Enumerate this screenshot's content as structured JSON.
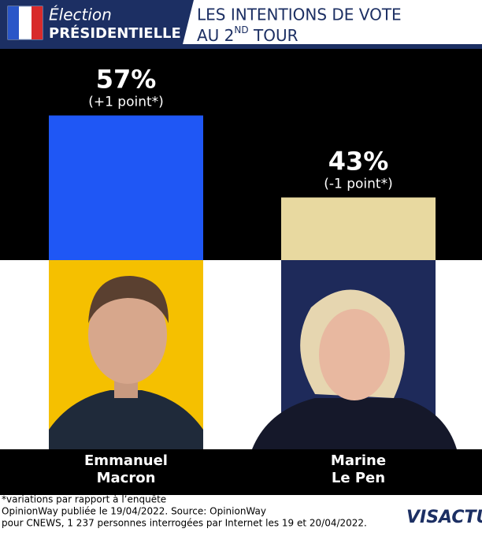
{
  "header": {
    "badge_top": "Élection",
    "badge_bottom": "PRÉSIDENTIELLE",
    "title_line1": "LES INTENTIONS DE VOTE",
    "title_line2_start": "AU 2",
    "title_line2_sup": "ND",
    "title_line2_end": " TOUR"
  },
  "chart_data": {
    "type": "bar",
    "categories": [
      "Emmanuel\nMacron",
      "Marine\nLe Pen"
    ],
    "values": [
      57,
      43
    ],
    "value_labels": [
      "57%",
      "43%"
    ],
    "annotations": [
      "(+1 point*)",
      "(-1 point*)"
    ],
    "colors": [
      "#1f57f5",
      "#e8d9a0"
    ]
  },
  "footnote": [
    "*variations par rapport à l’enquête",
    "OpinionWay publiée le 19/04/2022. Source: OpinionWay",
    "pour CNEWS, 1 237 personnes interrogées par Internet les 19 et 20/04/2022."
  ],
  "logo": "VISACTU"
}
